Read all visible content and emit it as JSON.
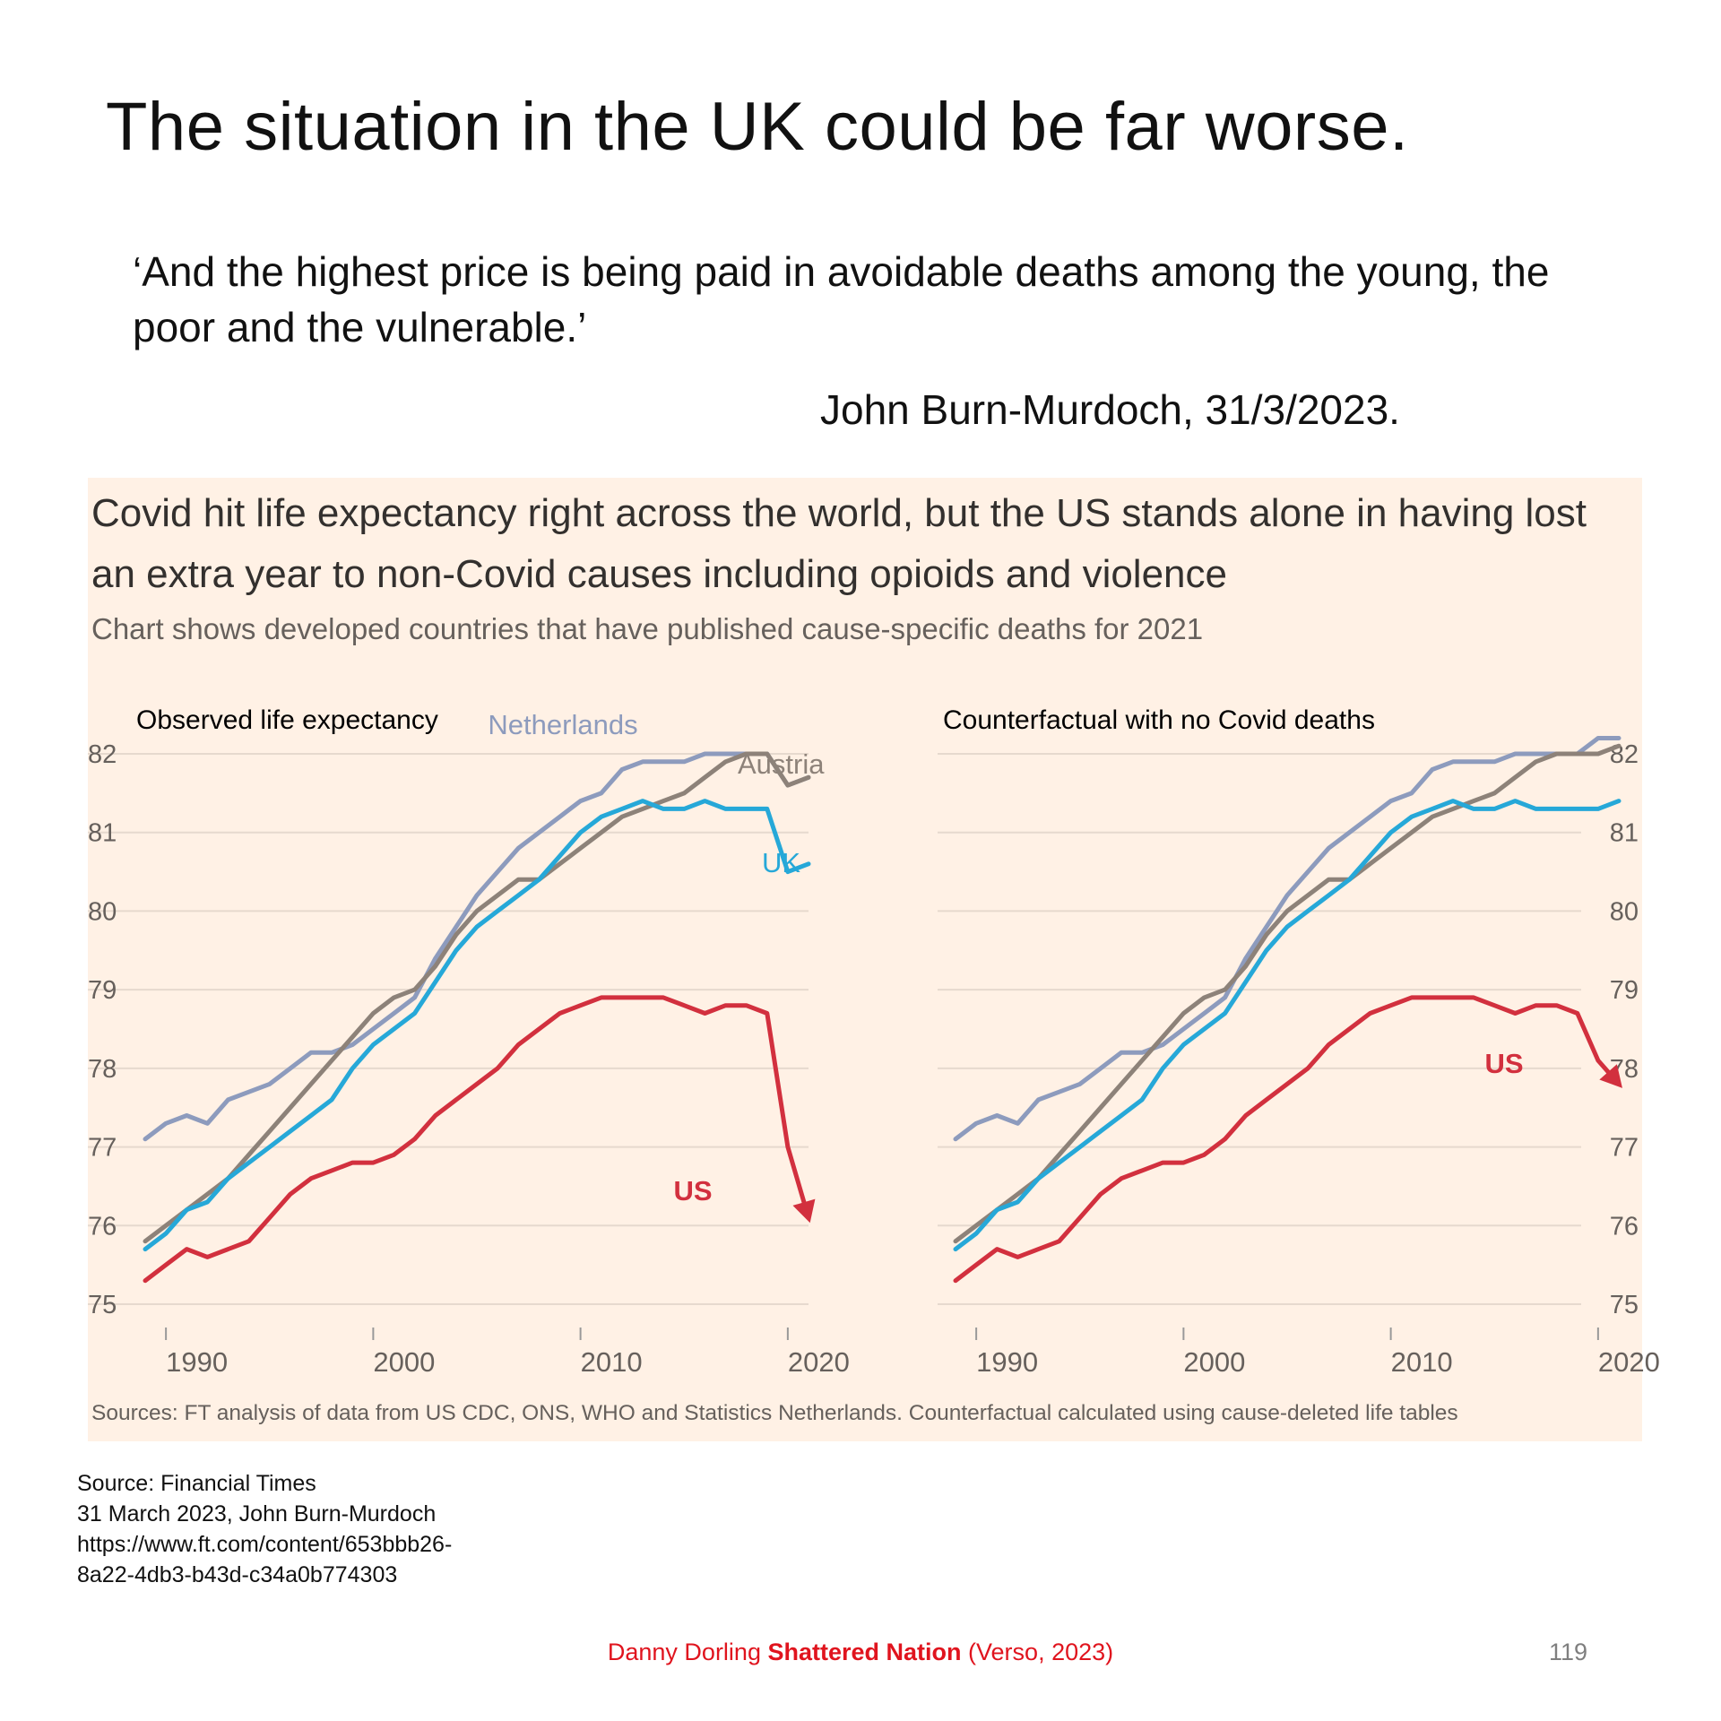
{
  "slide": {
    "title": "The situation in the UK could be far worse.",
    "quote": "‘And the highest price is being paid in avoidable deaths among the young, the poor and the vulnerable.’",
    "attribution": "John Burn-Murdoch, 31/3/2023."
  },
  "ft_chart": {
    "headline": "Covid hit life expectancy right across the world, but the US stands alone in having lost an extra year to non-Covid causes including opioids and violence",
    "subtitle": "Chart shows developed countries that have published cause-specific deaths for 2021",
    "source": "Sources: FT analysis of data from US CDC, ONS, WHO and Statistics Netherlands. Counterfactual calculated using cause-deleted life tables"
  },
  "chart_data": [
    {
      "type": "line",
      "title": "Observed life expectancy",
      "x_ticks": [
        1990,
        2000,
        2010,
        2020
      ],
      "y_ticks": [
        75,
        76,
        77,
        78,
        79,
        80,
        81,
        82
      ],
      "xlim": [
        1989,
        2021
      ],
      "ylim": [
        75,
        82
      ],
      "grid": true,
      "axis_side": "left",
      "x": [
        1989,
        1990,
        1991,
        1992,
        1993,
        1994,
        1995,
        1996,
        1997,
        1998,
        1999,
        2000,
        2001,
        2002,
        2003,
        2004,
        2005,
        2006,
        2007,
        2008,
        2009,
        2010,
        2011,
        2012,
        2013,
        2014,
        2015,
        2016,
        2017,
        2018,
        2019,
        2020,
        2021
      ],
      "series": [
        {
          "name": "Netherlands",
          "color": "#8d9bbd",
          "values": [
            77.1,
            77.3,
            77.4,
            77.3,
            77.6,
            77.7,
            77.8,
            78.0,
            78.2,
            78.2,
            78.3,
            78.5,
            78.7,
            78.9,
            79.4,
            79.8,
            80.2,
            80.5,
            80.8,
            81.0,
            81.2,
            81.4,
            81.5,
            81.8,
            81.9,
            81.9,
            81.9,
            82.0,
            82.0,
            82.0,
            82.0,
            81.6,
            81.7
          ]
        },
        {
          "name": "Austria",
          "color": "#8d8279",
          "values": [
            75.8,
            76.0,
            76.2,
            76.4,
            76.6,
            76.9,
            77.2,
            77.5,
            77.8,
            78.1,
            78.4,
            78.7,
            78.9,
            79.0,
            79.3,
            79.7,
            80.0,
            80.2,
            80.4,
            80.4,
            80.6,
            80.8,
            81.0,
            81.2,
            81.3,
            81.4,
            81.5,
            81.7,
            81.9,
            82.0,
            82.0,
            81.6,
            81.7
          ]
        },
        {
          "name": "UK",
          "color": "#26a8d8",
          "values": [
            75.7,
            75.9,
            76.2,
            76.3,
            76.6,
            76.8,
            77.0,
            77.2,
            77.4,
            77.6,
            78.0,
            78.3,
            78.5,
            78.7,
            79.1,
            79.5,
            79.8,
            80.0,
            80.2,
            80.4,
            80.7,
            81.0,
            81.2,
            81.3,
            81.4,
            81.3,
            81.3,
            81.4,
            81.3,
            81.3,
            81.3,
            80.5,
            80.6
          ]
        },
        {
          "name": "US",
          "color": "#d2303e",
          "values": [
            75.3,
            75.5,
            75.7,
            75.6,
            75.7,
            75.8,
            76.1,
            76.4,
            76.6,
            76.7,
            76.8,
            76.8,
            76.9,
            77.1,
            77.4,
            77.6,
            77.8,
            78.0,
            78.3,
            78.5,
            78.7,
            78.8,
            78.9,
            78.9,
            78.9,
            78.9,
            78.8,
            78.7,
            78.8,
            78.8,
            78.7,
            77.0,
            76.1
          ]
        }
      ]
    },
    {
      "type": "line",
      "title": "Counterfactual with no Covid deaths",
      "x_ticks": [
        1990,
        2000,
        2010,
        2020
      ],
      "y_ticks": [
        75,
        76,
        77,
        78,
        79,
        80,
        81,
        82
      ],
      "xlim": [
        1989,
        2021
      ],
      "ylim": [
        75,
        82
      ],
      "grid": true,
      "axis_side": "right",
      "x": [
        1989,
        1990,
        1991,
        1992,
        1993,
        1994,
        1995,
        1996,
        1997,
        1998,
        1999,
        2000,
        2001,
        2002,
        2003,
        2004,
        2005,
        2006,
        2007,
        2008,
        2009,
        2010,
        2011,
        2012,
        2013,
        2014,
        2015,
        2016,
        2017,
        2018,
        2019,
        2020,
        2021
      ],
      "series": [
        {
          "name": "Netherlands",
          "color": "#8d9bbd",
          "values": [
            77.1,
            77.3,
            77.4,
            77.3,
            77.6,
            77.7,
            77.8,
            78.0,
            78.2,
            78.2,
            78.3,
            78.5,
            78.7,
            78.9,
            79.4,
            79.8,
            80.2,
            80.5,
            80.8,
            81.0,
            81.2,
            81.4,
            81.5,
            81.8,
            81.9,
            81.9,
            81.9,
            82.0,
            82.0,
            82.0,
            82.0,
            82.2,
            82.2
          ]
        },
        {
          "name": "Austria",
          "color": "#8d8279",
          "values": [
            75.8,
            76.0,
            76.2,
            76.4,
            76.6,
            76.9,
            77.2,
            77.5,
            77.8,
            78.1,
            78.4,
            78.7,
            78.9,
            79.0,
            79.3,
            79.7,
            80.0,
            80.2,
            80.4,
            80.4,
            80.6,
            80.8,
            81.0,
            81.2,
            81.3,
            81.4,
            81.5,
            81.7,
            81.9,
            82.0,
            82.0,
            82.0,
            82.1
          ]
        },
        {
          "name": "UK",
          "color": "#26a8d8",
          "values": [
            75.7,
            75.9,
            76.2,
            76.3,
            76.6,
            76.8,
            77.0,
            77.2,
            77.4,
            77.6,
            78.0,
            78.3,
            78.5,
            78.7,
            79.1,
            79.5,
            79.8,
            80.0,
            80.2,
            80.4,
            80.7,
            81.0,
            81.2,
            81.3,
            81.4,
            81.3,
            81.3,
            81.4,
            81.3,
            81.3,
            81.3,
            81.3,
            81.4
          ]
        },
        {
          "name": "US",
          "color": "#d2303e",
          "values": [
            75.3,
            75.5,
            75.7,
            75.6,
            75.7,
            75.8,
            76.1,
            76.4,
            76.6,
            76.7,
            76.8,
            76.8,
            76.9,
            77.1,
            77.4,
            77.6,
            77.8,
            78.0,
            78.3,
            78.5,
            78.7,
            78.8,
            78.9,
            78.9,
            78.9,
            78.9,
            78.8,
            78.7,
            78.8,
            78.8,
            78.7,
            78.1,
            77.8
          ]
        }
      ]
    }
  ],
  "reference": {
    "lines": [
      "Source: Financial Times",
      "31 March 2023, John Burn-Murdoch",
      "https://www.ft.com/content/653bbb26-",
      "8a22-4db3-b43d-c34a0b774303"
    ]
  },
  "footer": {
    "author": "Danny Dorling",
    "book": "Shattered Nation",
    "publisher": "(Verso, 2023)",
    "page_number": "119"
  }
}
